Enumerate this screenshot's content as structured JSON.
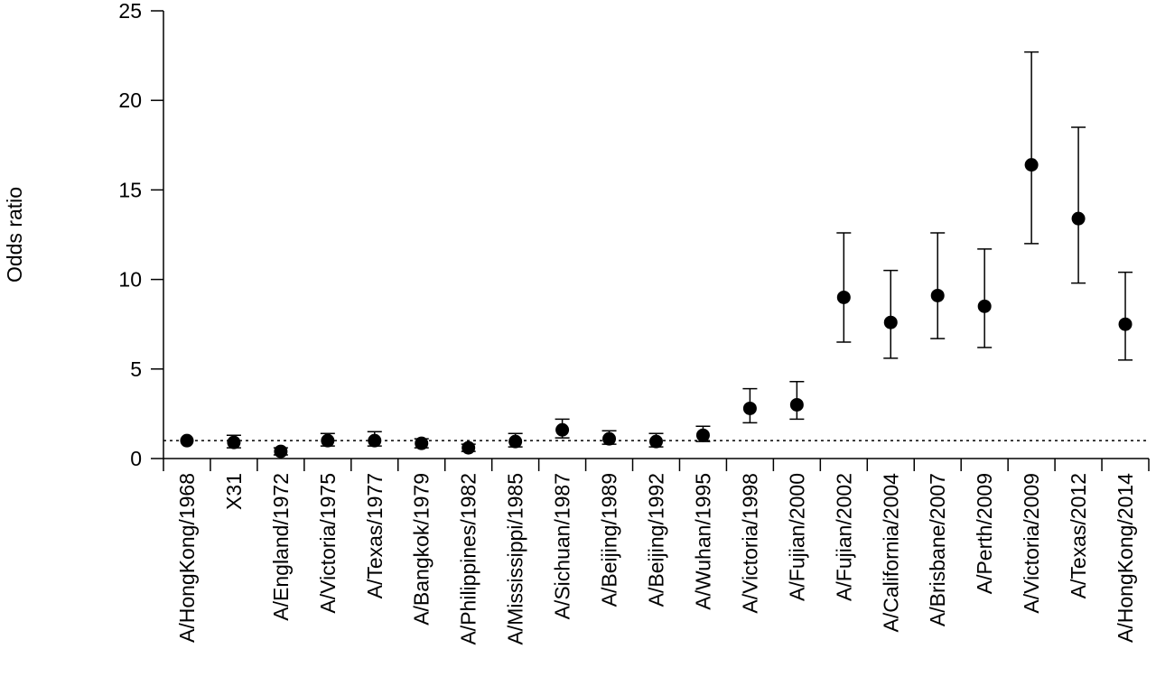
{
  "chart_data": {
    "type": "scatter",
    "title": "",
    "xlabel": "",
    "ylabel": "Odds ratio",
    "ylim": [
      0,
      25
    ],
    "yticks": [
      0,
      5,
      10,
      15,
      20,
      25
    ],
    "reference_line": 1,
    "grid": false,
    "legend": "none",
    "marker_color": "#000000",
    "categories": [
      "A/HongKong/1968",
      "X31",
      "A/England/1972",
      "A/Victoria/1975",
      "A/Texas/1977",
      "A/Bangkok/1979",
      "A/Philippines/1982",
      "A/Mississippi/1985",
      "A/Sichuan/1987",
      "A/Beijing/1989",
      "A/Beijing/1992",
      "A/Wuhan/1995",
      "A/Victoria/1998",
      "A/Fujian/2000",
      "A/Fujian/2002",
      "A/California/2004",
      "A/Brisbane/2007",
      "A/Perth/2009",
      "A/Victoria/2009",
      "A/Texas/2012",
      "A/HongKong/2014"
    ],
    "values": [
      1.0,
      0.9,
      0.4,
      1.0,
      1.0,
      0.85,
      0.6,
      0.95,
      1.6,
      1.1,
      0.95,
      1.3,
      2.8,
      3.0,
      9.0,
      7.6,
      9.1,
      8.5,
      16.4,
      13.4,
      7.5
    ],
    "ci_low": [
      null,
      0.6,
      0.2,
      0.7,
      0.7,
      0.6,
      0.4,
      0.65,
      1.15,
      0.8,
      0.65,
      0.95,
      2.0,
      2.2,
      6.5,
      5.6,
      6.7,
      6.2,
      12.0,
      9.8,
      5.5
    ],
    "ci_high": [
      null,
      1.3,
      0.6,
      1.4,
      1.5,
      1.1,
      0.8,
      1.4,
      2.2,
      1.55,
      1.4,
      1.8,
      3.9,
      4.3,
      12.6,
      10.5,
      12.6,
      11.7,
      22.7,
      18.5,
      10.4
    ]
  }
}
